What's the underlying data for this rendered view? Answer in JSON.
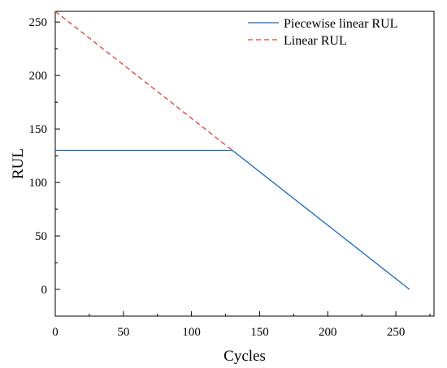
{
  "chart_data": {
    "type": "line",
    "title": "",
    "xlabel": "Cycles",
    "ylabel": "RUL",
    "xlim": [
      0,
      278
    ],
    "ylim": [
      -25,
      260
    ],
    "xticks": [
      0,
      50,
      100,
      150,
      200,
      250
    ],
    "yticks": [
      0,
      50,
      100,
      150,
      200,
      250
    ],
    "x_tick_labels": [
      "0",
      "50",
      "100",
      "150",
      "200",
      "250"
    ],
    "y_tick_labels": [
      "0",
      "50",
      "100",
      "150",
      "200",
      "250"
    ],
    "grid": false,
    "legend_position": "top-right",
    "series": [
      {
        "name": "Piecewise linear RUL",
        "color": "#1565c0",
        "line_style": "solid",
        "x": [
          0,
          130,
          260
        ],
        "y": [
          130,
          130,
          0
        ]
      },
      {
        "name": "Linear RUL",
        "color": "#e53935",
        "line_style": "dashed",
        "x": [
          0,
          130
        ],
        "y": [
          260,
          130
        ]
      }
    ]
  }
}
